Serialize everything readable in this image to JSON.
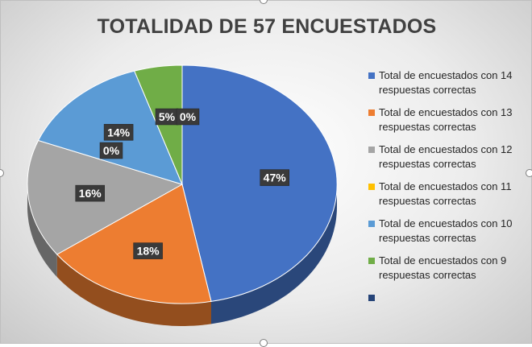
{
  "chart_data": {
    "type": "pie",
    "title": "TOTALIDAD DE 57 ENCUESTADOS",
    "slices": [
      {
        "label": "Total de encuestados con 14 respuestas correctas",
        "value": 47,
        "display": "47%",
        "color": "#4472C4"
      },
      {
        "label": "Total de encuestados con 13 respuestas correctas",
        "value": 18,
        "display": "18%",
        "color": "#ED7D31"
      },
      {
        "label": "Total de encuestados con 12 respuestas correctas",
        "value": 16,
        "display": "16%",
        "color": "#A5A5A5"
      },
      {
        "label": "Total de encuestados con 11 respuestas correctas",
        "value": 0,
        "display": "0%",
        "color": "#FFC000"
      },
      {
        "label": "Total de encuestados con 10 respuestas correctas",
        "value": 14,
        "display": "14%",
        "color": "#5B9BD5"
      },
      {
        "label": "Total de encuestados con 9 respuestas correctas",
        "value": 5,
        "display": "5%",
        "color": "#70AD47"
      },
      {
        "label": "",
        "value": 0,
        "display": "0%",
        "color": "#264478"
      }
    ],
    "legend_position": "right",
    "style": "3d"
  }
}
